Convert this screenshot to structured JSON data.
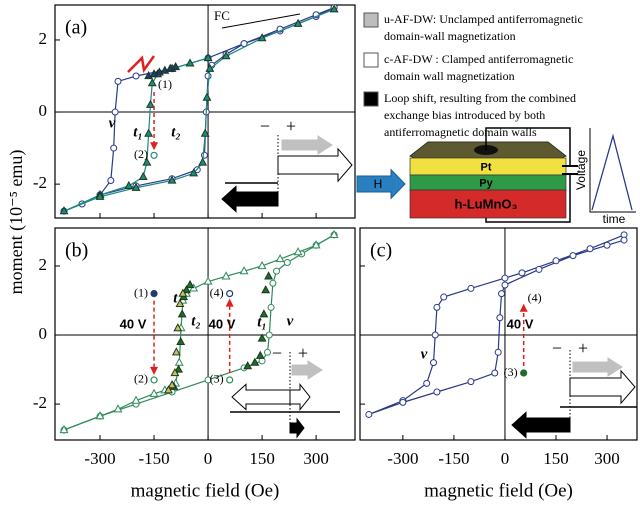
{
  "y_label": "moment (10⁻⁵ emu)",
  "legend": [
    {
      "color": "#bdbdbd",
      "lines": [
        "u-AF-DW: Unclamped antiferromagnetic",
        "domain-wall  magnetization"
      ]
    },
    {
      "color": "#ffffff",
      "lines": [
        "c-AF-DW : Clamped antiferromagnetic",
        "domain wall magnetization"
      ]
    },
    {
      "color": "#000000",
      "lines": [
        "Loop shift, resulting from the combined",
        "exchange bias introduced by both",
        "antiferromagnetic domain walls"
      ]
    }
  ],
  "schematic": {
    "field": "H",
    "layers": [
      "Pt",
      "Py",
      "h-LuMnO₃"
    ],
    "y_label": "Voltage",
    "x_label": "time"
  },
  "chart_data": [
    {
      "type": "line",
      "panel": "(a)",
      "xlim": [
        -425,
        408
      ],
      "ylim": [
        -2.94,
        2.97
      ],
      "xticks": [
        -300,
        -150,
        0,
        150,
        300
      ],
      "yticks": [
        -2,
        0,
        2
      ],
      "xtick_labels": false,
      "ytick_labels": true,
      "fc": "FC",
      "inset": [
        "−",
        "+"
      ],
      "series": [
        {
          "name": "v",
          "color": "#2a3a8a",
          "marker": "open-circle",
          "line": true,
          "x": [
            350,
            300,
            200,
            100,
            0,
            -100,
            -200,
            -250,
            -258,
            -262,
            -270,
            -300,
            -350,
            -400,
            -350,
            -300,
            -200,
            -100,
            -30,
            -10,
            -5,
            0,
            10,
            50,
            100,
            200,
            300,
            350
          ],
          "values": [
            2.9,
            2.65,
            2.25,
            1.9,
            1.5,
            1.2,
            1.0,
            0.85,
            0,
            -1.0,
            -1.9,
            -2.3,
            -2.55,
            -2.75,
            -2.55,
            -2.3,
            -2.05,
            -1.85,
            -1.6,
            -1.2,
            0,
            1.0,
            1.3,
            1.6,
            1.9,
            2.3,
            2.7,
            2.9
          ]
        },
        {
          "name": "t₁",
          "color": "#1f8a80",
          "marker": "filled-triangle",
          "line": true,
          "x": [
            0,
            -50,
            -100,
            -140,
            -155,
            -160,
            -165,
            -170,
            -180,
            -220,
            -300,
            -400,
            -300,
            -200,
            -100,
            -40,
            -15,
            -8,
            -3,
            5,
            50,
            150,
            250,
            350
          ],
          "values": [
            1.5,
            1.35,
            1.2,
            1.05,
            0.8,
            0.2,
            -0.6,
            -1.4,
            -1.8,
            -2.05,
            -2.3,
            -2.75,
            -2.35,
            -2.1,
            -1.9,
            -1.7,
            -1.4,
            -0.6,
            0.4,
            1.2,
            1.55,
            2.05,
            2.45,
            2.85
          ]
        },
        {
          "name": "t₂",
          "color": "#1e3a7a",
          "marker": "filled-triangle",
          "line": false,
          "x": [
            -165,
            -150,
            -135,
            -120,
            -105,
            -90
          ],
          "values": [
            1.0,
            1.05,
            1.1,
            1.15,
            1.2,
            1.25
          ]
        }
      ],
      "points": [
        {
          "label": "(1)",
          "x": -150,
          "y": 0.75,
          "marker": "none",
          "color": "#000000"
        },
        {
          "label": "(2)",
          "x": -150,
          "y": -1.2,
          "marker": "open",
          "color": "#1f8a80"
        }
      ]
    },
    {
      "type": "line",
      "panel": "(b)",
      "x_label": "magnetic field (Oe)",
      "xlim": [
        -425,
        408
      ],
      "ylim": [
        -3.04,
        3.1
      ],
      "xticks": [
        -300,
        -150,
        0,
        150,
        300
      ],
      "yticks": [
        -2,
        0,
        2
      ],
      "xtick_labels": true,
      "ytick_labels": true,
      "inset": [
        "−",
        "+"
      ],
      "voltage_labels": [
        "40 V",
        "40 V"
      ],
      "series": [
        {
          "name": "v",
          "color": "#2e8b57",
          "marker": "open-circle",
          "line": true,
          "x": [
            -400,
            -300,
            -200,
            -100,
            0,
            100,
            150,
            165,
            170,
            175,
            180,
            190,
            220,
            260,
            300,
            350
          ],
          "values": [
            -2.75,
            -2.35,
            -2.0,
            -1.65,
            -1.3,
            -0.95,
            -0.75,
            -0.5,
            0,
            0.8,
            1.5,
            1.85,
            2.1,
            2.35,
            2.6,
            2.9
          ]
        },
        {
          "color": "#2e8b57",
          "marker": "open-triangle",
          "line": true,
          "x": [
            350,
            300,
            250,
            200,
            150,
            100,
            50,
            0,
            -40,
            -60,
            -70,
            -75,
            -80,
            -90,
            -120,
            -150,
            -200,
            -250,
            -300,
            -400
          ],
          "values": [
            2.9,
            2.6,
            2.4,
            2.2,
            2.0,
            1.85,
            1.7,
            1.55,
            1.35,
            1.2,
            1.0,
            0.2,
            -0.8,
            -1.4,
            -1.6,
            -1.7,
            -1.9,
            -2.15,
            -2.35,
            -2.75
          ]
        },
        {
          "name": "t₁",
          "color": "#1e6b2e",
          "marker": "filled-triangle",
          "line": false,
          "x": [
            -50,
            -60,
            -68,
            -72,
            -76,
            -82,
            -95,
            110,
            130,
            145,
            150,
            155,
            160,
            168
          ],
          "values": [
            1.45,
            1.3,
            1.1,
            0.6,
            -0.2,
            -1.0,
            -1.5,
            -0.9,
            -0.8,
            -0.6,
            -0.1,
            0.6,
            1.3,
            1.7
          ]
        },
        {
          "name": "t₂",
          "color": "#c8c060",
          "marker": "filled-triangle",
          "line": false,
          "x": [
            -70,
            -78,
            -84,
            -88,
            -92,
            -100,
            -110
          ],
          "values": [
            1.2,
            0.9,
            0.2,
            -0.5,
            -1.1,
            -1.45,
            -1.6
          ]
        }
      ],
      "points": [
        {
          "label": "(1)",
          "x": -150,
          "y": 1.2,
          "marker": "filled",
          "color": "#1e3a7a"
        },
        {
          "label": "(2)",
          "x": -150,
          "y": -1.3,
          "marker": "open",
          "color": "#2e8b57"
        },
        {
          "label": "(4)",
          "x": 60,
          "y": 1.2,
          "marker": "open",
          "color": "#1e3a7a"
        },
        {
          "label": "(3)",
          "x": 60,
          "y": -1.3,
          "marker": "open",
          "color": "#2e8b57"
        }
      ]
    },
    {
      "type": "line",
      "panel": "(c)",
      "x_label": "magnetic field (Oe)",
      "xlim": [
        -426,
        388
      ],
      "ylim": [
        -3.04,
        3.1
      ],
      "xticks": [
        -300,
        -150,
        0,
        150,
        300
      ],
      "yticks": [
        -2,
        0,
        2
      ],
      "xtick_labels": true,
      "ytick_labels": false,
      "inset": [
        "−",
        "+"
      ],
      "voltage_labels": [
        "40 V"
      ],
      "series": [
        {
          "name": "v",
          "color": "#2a3a8a",
          "marker": "open-circle",
          "line": true,
          "x": [
            350,
            250,
            150,
            50,
            0,
            -100,
            -180,
            -200,
            -205,
            -210,
            -230,
            -300,
            -400,
            -300,
            -200,
            -100,
            -30,
            -20,
            -15,
            -10,
            0,
            100,
            200,
            300,
            350
          ],
          "values": [
            2.9,
            2.5,
            2.15,
            1.8,
            1.65,
            1.35,
            1.1,
            0.8,
            0,
            -0.8,
            -1.4,
            -1.9,
            -2.3,
            -1.95,
            -1.65,
            -1.35,
            -1.1,
            -0.5,
            0.5,
            1.2,
            1.45,
            1.9,
            2.3,
            2.6,
            2.75
          ]
        }
      ],
      "points": [
        {
          "label": "(4)",
          "x": 55,
          "y": 1.05,
          "marker": "none",
          "color": "#000000"
        },
        {
          "label": "(3)",
          "x": 55,
          "y": -1.1,
          "marker": "filled",
          "color": "#1e6b2e"
        }
      ]
    }
  ]
}
